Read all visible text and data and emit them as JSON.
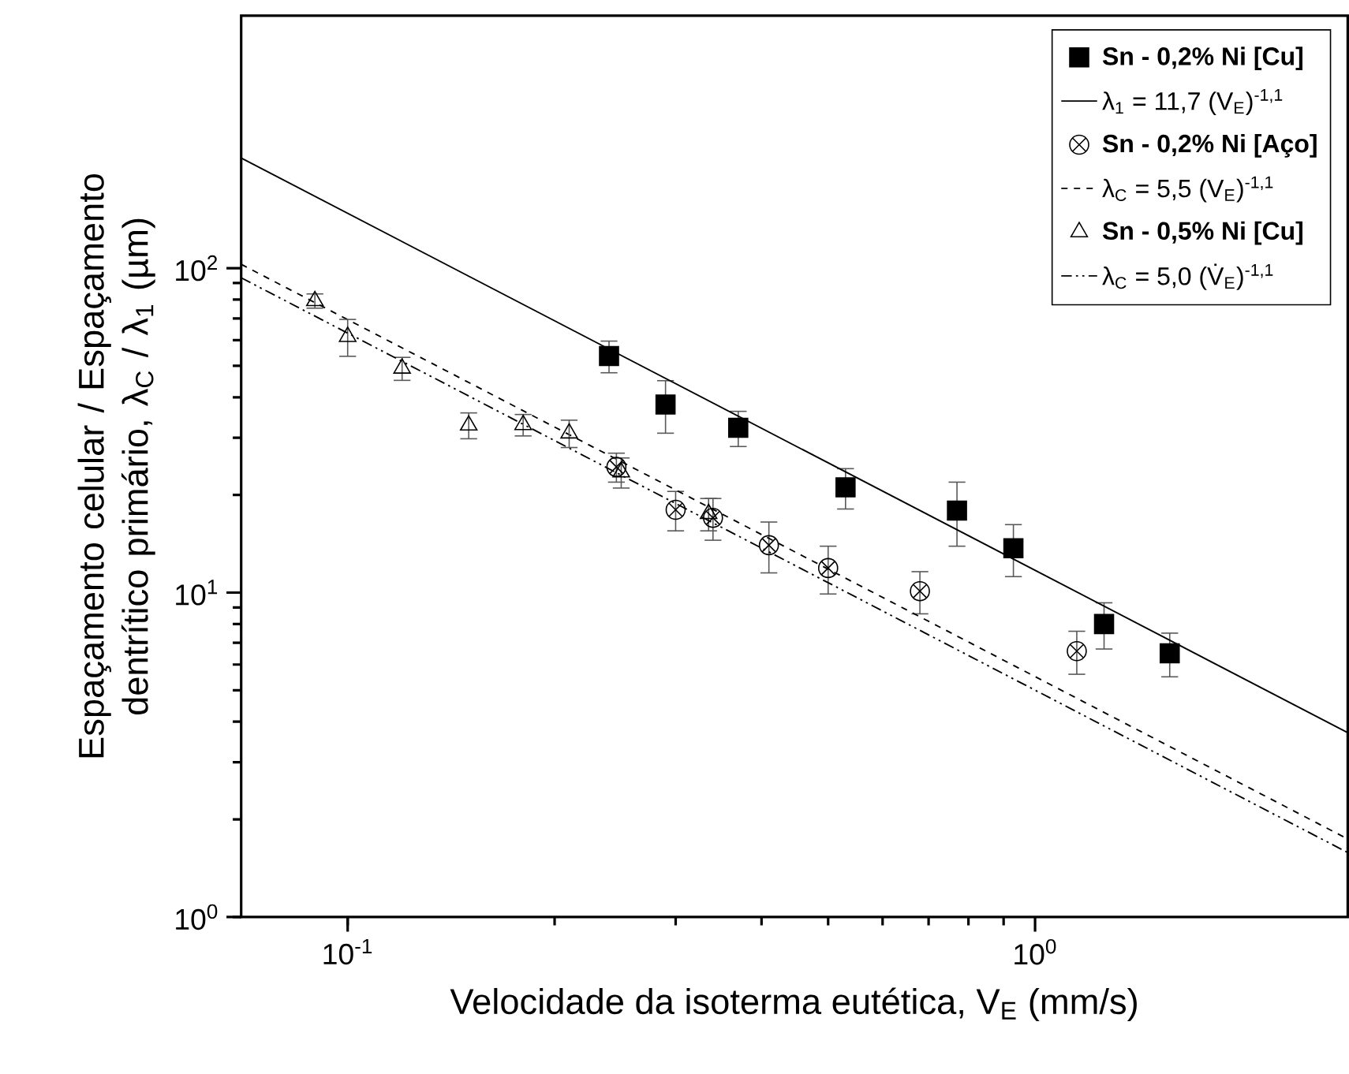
{
  "chart_data": {
    "type": "scatter",
    "xlabel": "Velocidade da isoterma eutética, V$_{E}$ (mm/s)",
    "ylabel": "Espaçamento celular / Espaçamento dentrítico primário, λ$_{C}$ / λ$_{1}$ (µm)",
    "log": "xy",
    "xlim": [
      0.07,
      2.85
    ],
    "ylim": [
      1,
      600
    ],
    "xticks": [
      {
        "value": 0.1,
        "label": "10$^{-1}$"
      },
      {
        "value": 1,
        "label": "10$^{0}$"
      }
    ],
    "yticks": [
      {
        "value": 1,
        "label": "10$^{0}$"
      },
      {
        "value": 10,
        "label": "10$^{1}$"
      },
      {
        "value": 100,
        "label": "10$^{2}$"
      }
    ],
    "legend": "top right",
    "grid": false,
    "series": [
      {
        "name": "Sn - 0,2% Ni [Cu]",
        "color": "#000000",
        "marker": "square",
        "x": [
          0.24,
          0.29,
          0.37,
          0.53,
          0.77,
          0.93,
          1.26,
          1.57
        ],
        "values": [
          53.6,
          38,
          32.2,
          21.1,
          17.9,
          13.7,
          8.0,
          6.5
        ],
        "errors": [
          6,
          7,
          4,
          3,
          4,
          2.5,
          1.3,
          1
        ]
      },
      {
        "name": "λ$_{1}$ = 11,7 (V$_{E}$)$^{-1,1}$",
        "type": "line",
        "color": "#000000",
        "line_style": "solid",
        "x": [
          0.07,
          2.85
        ],
        "values": [
          218.6,
          3.7
        ]
      },
      {
        "name": "Sn - 0,2% Ni [Aço]",
        "color": "#000000",
        "marker": "cross",
        "x": [
          0.246,
          0.3,
          0.34,
          0.41,
          0.5,
          0.68,
          1.15
        ],
        "values": [
          24.4,
          18,
          17,
          14.0,
          11.9,
          10.1,
          6.6
        ],
        "errors": [
          2.5,
          2.5,
          2.5,
          2.5,
          2,
          1.5,
          1
        ]
      },
      {
        "name": "λ$_{C}$ = 5,5 (V$_{E}$)$^{-1,1}$",
        "type": "line",
        "color": "#000000",
        "line_style": "dashed",
        "x": [
          0.07,
          2.85
        ],
        "values": [
          102.8,
          1.74
        ]
      },
      {
        "name": "Sn - 0,5% Ni [Cu]",
        "color": "#000000",
        "marker": "triangle",
        "x": [
          0.0896,
          0.1,
          0.12,
          0.15,
          0.18,
          0.21,
          0.25,
          0.335
        ],
        "values": [
          79.3,
          61.5,
          49.1,
          32.8,
          32.9,
          31.0,
          23.5,
          17.5
        ],
        "errors": [
          4,
          8,
          4,
          3,
          2.5,
          3,
          2.5,
          2
        ]
      },
      {
        "name": "λ$_{C}$ = 5,0 (V̇$_{E}$)$^{-1,1}$",
        "type": "line",
        "color": "#000000",
        "line_style": "dashdotdotted",
        "x": [
          0.07,
          2.85
        ],
        "values": [
          93.4,
          1.58
        ]
      }
    ]
  }
}
